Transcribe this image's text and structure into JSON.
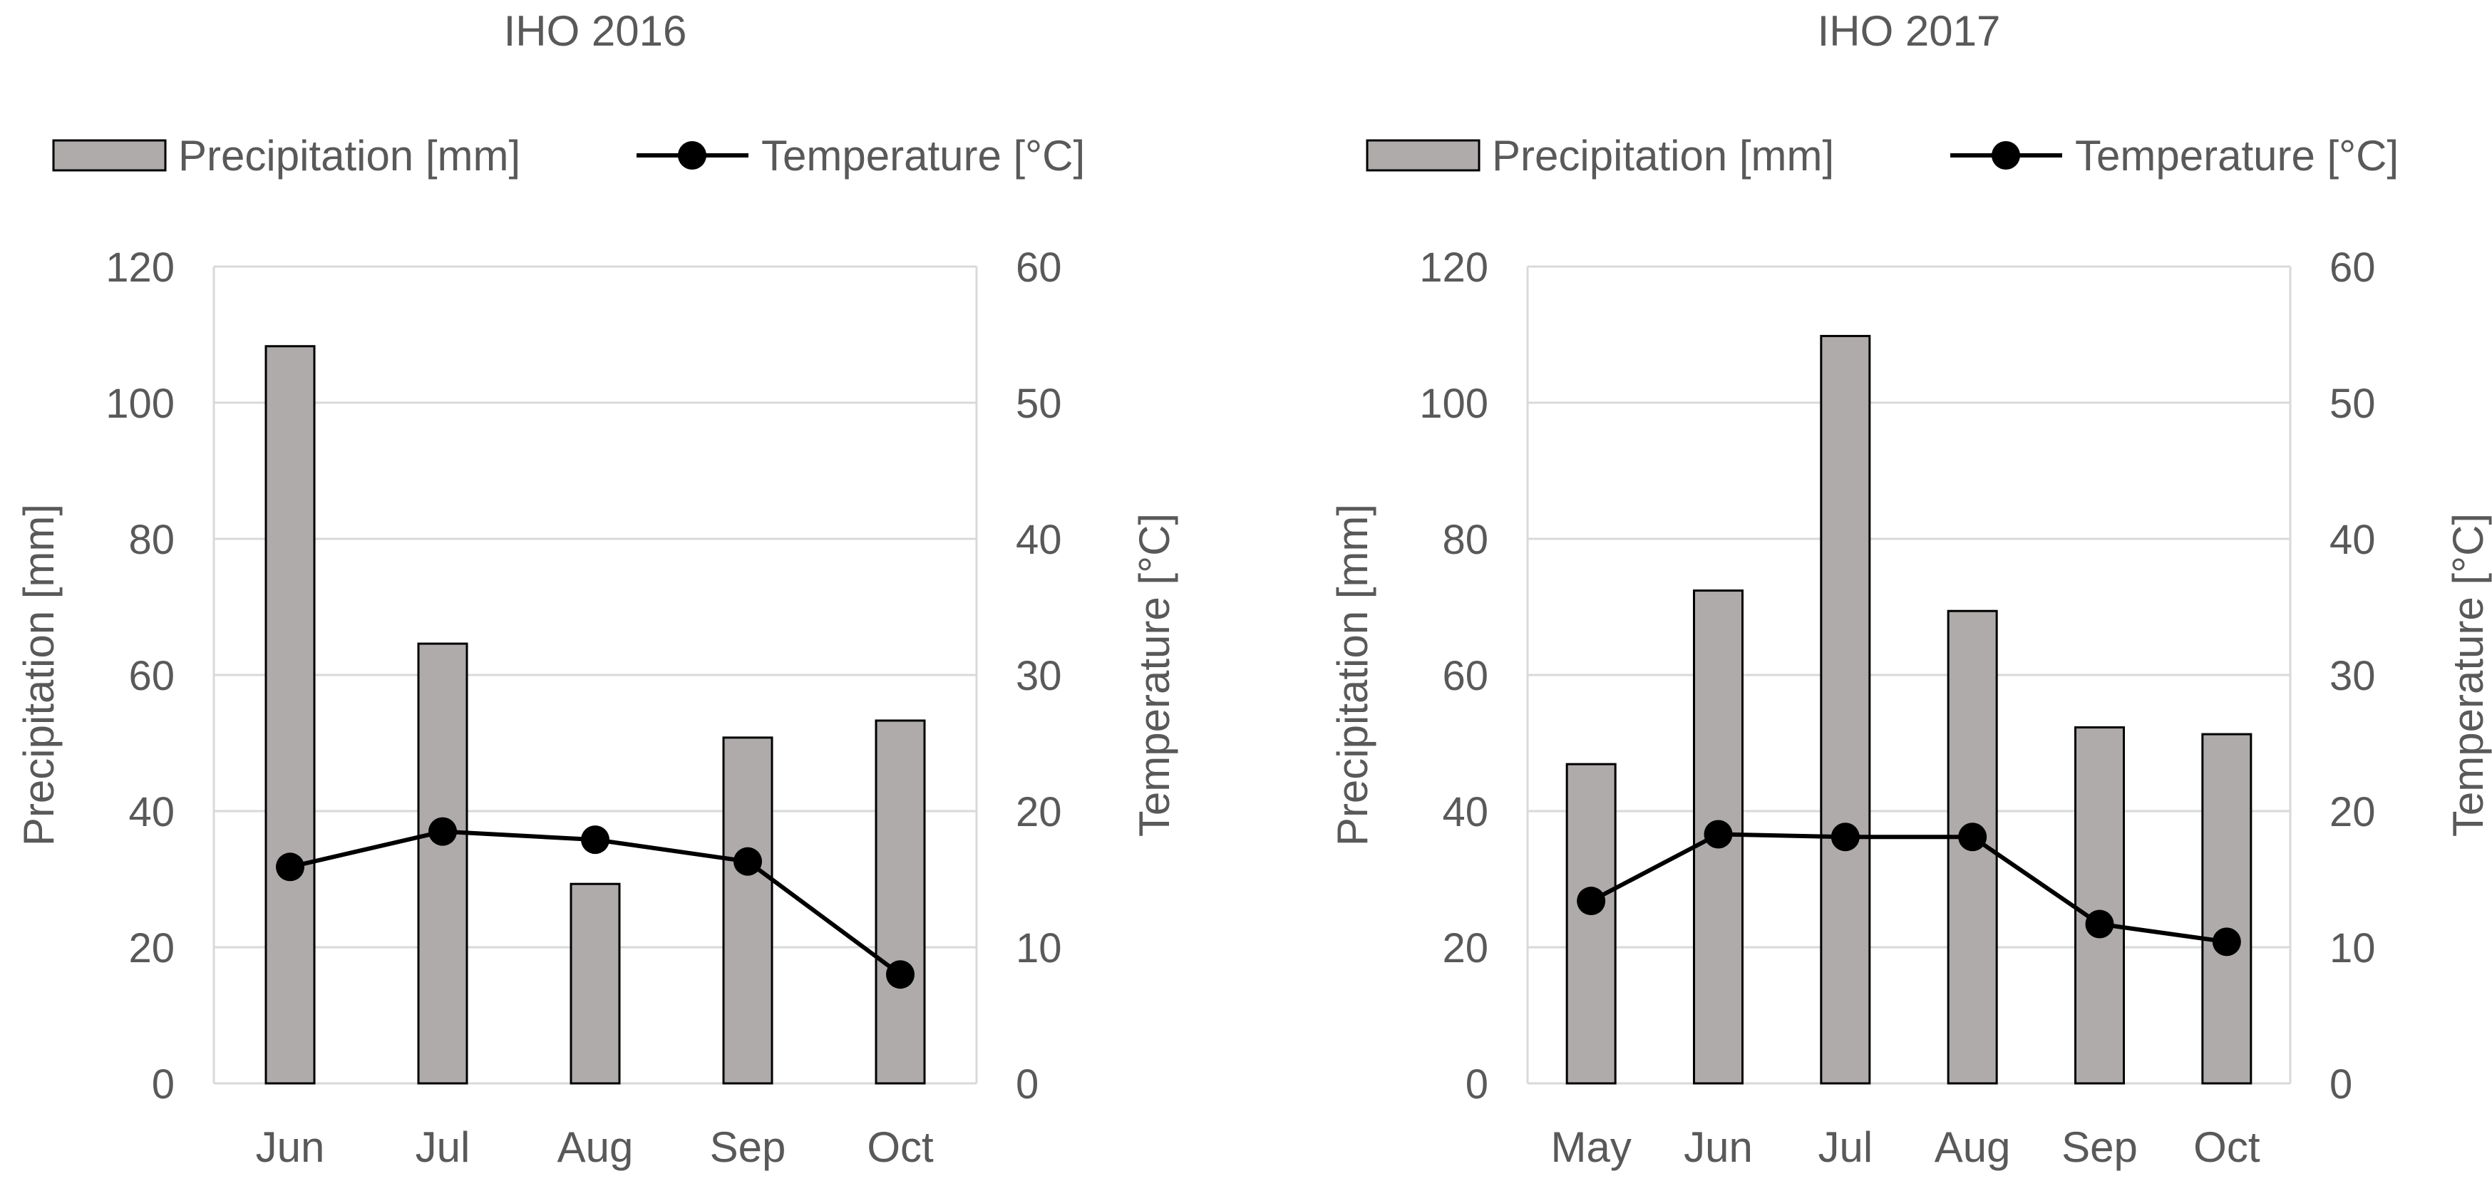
{
  "chart_data": [
    {
      "type": "bar",
      "title": "IHO 2016",
      "categories": [
        "Jun",
        "Jul",
        "Aug",
        "Sep",
        "Oct"
      ],
      "series": [
        {
          "name": "Precipitation [mm]",
          "type": "bar",
          "axis": "left",
          "values": [
            108.3,
            64.6,
            29.3,
            50.8,
            53.3
          ]
        },
        {
          "name": "Temperature [°C]",
          "type": "line",
          "axis": "right",
          "values": [
            15.9,
            18.5,
            17.9,
            16.3,
            8.0
          ]
        }
      ],
      "ylabel": "Precipitation [mm]",
      "y2label": "Temperature [°C]",
      "ylim": [
        0,
        120
      ],
      "y2lim": [
        0,
        60
      ],
      "yticks": [
        "0",
        "20",
        "40",
        "60",
        "80",
        "100",
        "120"
      ],
      "y2ticks": [
        "0",
        "10",
        "20",
        "30",
        "40",
        "50",
        "60"
      ],
      "grid": true,
      "legend": "top",
      "colors": {
        "bar": "#afabab",
        "bar_edge": "#000000",
        "line": "#000000",
        "grid": "#d9d9d9"
      }
    },
    {
      "type": "bar",
      "title": "IHO 2017",
      "categories": [
        "May",
        "Jun",
        "Jul",
        "Aug",
        "Sep",
        "Oct"
      ],
      "series": [
        {
          "name": "Precipitation [mm]",
          "type": "bar",
          "axis": "left",
          "values": [
            46.9,
            72.4,
            109.8,
            69.4,
            52.3,
            51.3
          ]
        },
        {
          "name": "Temperature [°C]",
          "type": "line",
          "axis": "right",
          "values": [
            13.4,
            18.3,
            18.1,
            18.1,
            11.7,
            10.4
          ]
        }
      ],
      "ylabel": "Precipitation [mm]",
      "y2label": "Temperature [°C]",
      "ylim": [
        0,
        120
      ],
      "y2lim": [
        0,
        60
      ],
      "yticks": [
        "0",
        "20",
        "40",
        "60",
        "80",
        "100",
        "120"
      ],
      "y2ticks": [
        "0",
        "10",
        "20",
        "30",
        "40",
        "50",
        "60"
      ],
      "grid": true,
      "legend": "top",
      "colors": {
        "bar": "#afabab",
        "bar_edge": "#000000",
        "line": "#000000",
        "grid": "#d9d9d9"
      }
    }
  ]
}
